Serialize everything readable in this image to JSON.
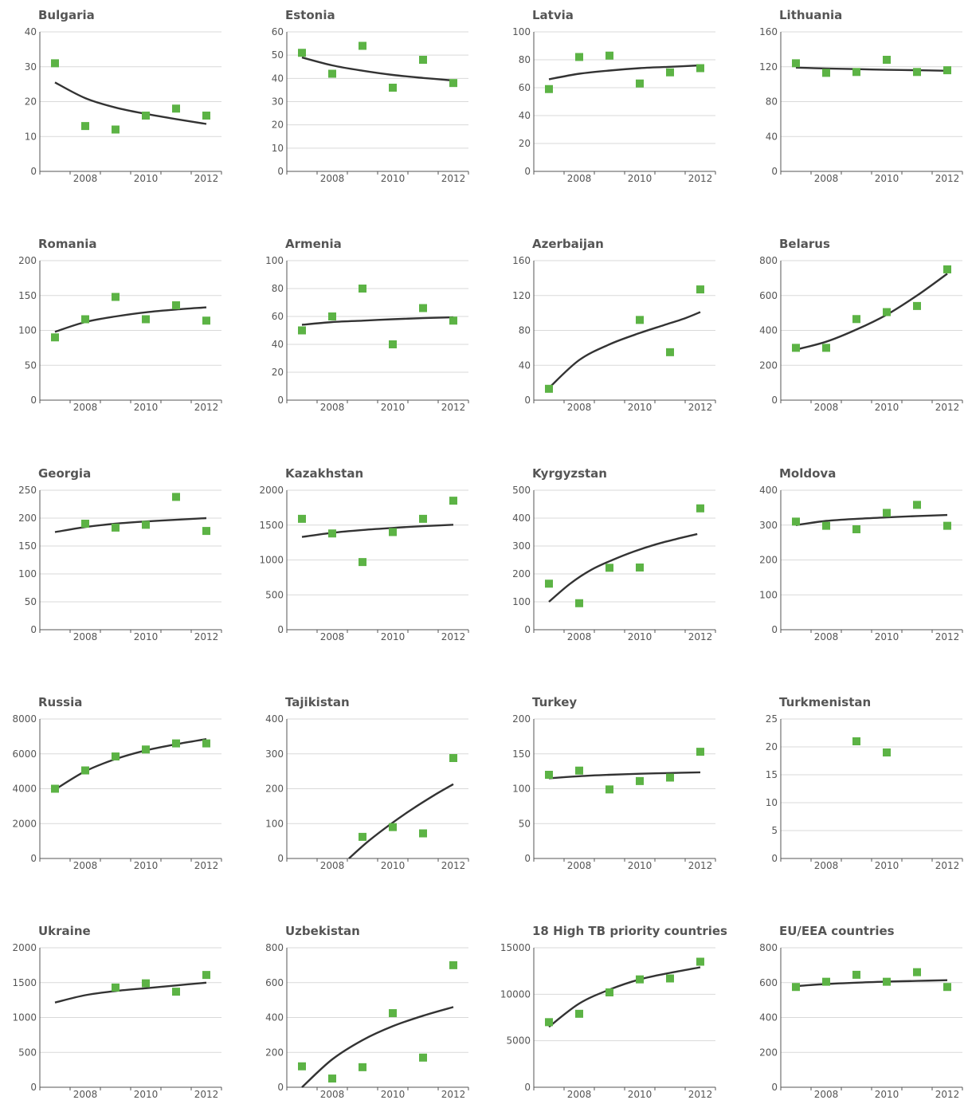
{
  "colors": {
    "point": "#5cb345",
    "trend": "#333333",
    "grid": "#d9d9d9",
    "text": "#555555"
  },
  "chart_data": [
    {
      "type": "scatter",
      "title": "Bulgaria",
      "x": [
        2007,
        2008,
        2009,
        2010,
        2011,
        2012
      ],
      "values": [
        31,
        13,
        12,
        16,
        18,
        16
      ],
      "trend": [
        25.5,
        21.0,
        18.3,
        16.5,
        15.0,
        13.6
      ],
      "yticks": [
        0,
        10,
        20,
        30,
        40
      ],
      "ylim": [
        0,
        40
      ],
      "xticks": [
        2008,
        2010,
        2012
      ]
    },
    {
      "type": "scatter",
      "title": "Estonia",
      "x": [
        2007,
        2008,
        2009,
        2010,
        2011,
        2012
      ],
      "values": [
        51,
        42,
        54,
        36,
        48,
        38
      ],
      "trend": [
        49,
        45.6,
        43.3,
        41.5,
        40.2,
        39.1
      ],
      "yticks": [
        0,
        10,
        20,
        30,
        40,
        50,
        60
      ],
      "ylim": [
        0,
        60
      ],
      "xticks": [
        2008,
        2010,
        2012
      ]
    },
    {
      "type": "scatter",
      "title": "Latvia",
      "x": [
        2007,
        2008,
        2009,
        2010,
        2011,
        2012
      ],
      "values": [
        59,
        82,
        83,
        63,
        71,
        74
      ],
      "trend": [
        66,
        70,
        72.3,
        74,
        75,
        76
      ],
      "yticks": [
        0,
        20,
        40,
        60,
        80,
        100
      ],
      "ylim": [
        0,
        100
      ],
      "xticks": [
        2008,
        2010,
        2012
      ]
    },
    {
      "type": "scatter",
      "title": "Lithuania",
      "x": [
        2007,
        2008,
        2009,
        2010,
        2011,
        2012
      ],
      "values": [
        124,
        113,
        114,
        128,
        114,
        116
      ],
      "trend": [
        119,
        118,
        117.3,
        116.5,
        116,
        115.4
      ],
      "yticks": [
        0,
        40,
        80,
        120,
        160
      ],
      "ylim": [
        0,
        160
      ],
      "xticks": [
        2008,
        2010,
        2012
      ]
    },
    {
      "type": "scatter",
      "title": "Romania",
      "x": [
        2007,
        2008,
        2009,
        2010,
        2011,
        2012
      ],
      "values": [
        90,
        116,
        148,
        116,
        136,
        114
      ],
      "trend": [
        98,
        112,
        120,
        126,
        130,
        133
      ],
      "yticks": [
        0,
        50,
        100,
        150,
        200
      ],
      "ylim": [
        0,
        200
      ],
      "xticks": [
        2008,
        2010,
        2012
      ]
    },
    {
      "type": "scatter",
      "title": "Armenia",
      "x": [
        2007,
        2008,
        2009,
        2010,
        2011,
        2012
      ],
      "values": [
        50,
        60,
        80,
        40,
        66,
        57
      ],
      "trend": [
        54,
        56,
        57,
        58,
        58.8,
        59.4
      ],
      "yticks": [
        0,
        20,
        40,
        60,
        80,
        100
      ],
      "ylim": [
        0,
        100
      ],
      "xticks": [
        2008,
        2010,
        2012
      ]
    },
    {
      "type": "scatter",
      "title": "Azerbaijan",
      "x": [
        2007,
        2010,
        2011,
        2012
      ],
      "values": [
        13,
        92,
        55,
        127
      ],
      "trend": [
        14,
        46,
        64,
        77,
        86,
        94,
        101
      ],
      "trend_x": [
        2007,
        2008,
        2009,
        2010,
        2010.8,
        2011.5,
        2012
      ],
      "yticks": [
        0,
        40,
        80,
        120,
        160
      ],
      "ylim": [
        0,
        160
      ],
      "xticks": [
        2008,
        2010,
        2012
      ]
    },
    {
      "type": "scatter",
      "title": "Belarus",
      "x": [
        2007,
        2008,
        2009,
        2010,
        2011,
        2012
      ],
      "values": [
        300,
        300,
        465,
        505,
        540,
        750
      ],
      "trend": [
        290,
        335,
        405,
        490,
        600,
        725
      ],
      "yticks": [
        0,
        200,
        400,
        600,
        800
      ],
      "ylim": [
        0,
        800
      ],
      "xticks": [
        2008,
        2010,
        2012
      ]
    },
    {
      "type": "scatter",
      "title": "Georgia",
      "x": [
        2007,
        2008,
        2009,
        2010,
        2011,
        2012
      ],
      "values": [
        null,
        190,
        183,
        188,
        238,
        177
      ],
      "trend": [
        175,
        184,
        190,
        194,
        197,
        200
      ],
      "yticks": [
        0,
        50,
        100,
        150,
        200,
        250
      ],
      "ylim": [
        0,
        250
      ],
      "xticks": [
        2008,
        2010,
        2012
      ]
    },
    {
      "type": "scatter",
      "title": "Kazakhstan",
      "x": [
        2007,
        2008,
        2009,
        2010,
        2011,
        2012
      ],
      "values": [
        1590,
        1380,
        970,
        1400,
        1590,
        1850
      ],
      "trend": [
        1330,
        1390,
        1430,
        1460,
        1485,
        1505
      ],
      "yticks": [
        0,
        500,
        1000,
        1500,
        2000
      ],
      "ylim": [
        0,
        2000
      ],
      "xticks": [
        2008,
        2010,
        2012
      ]
    },
    {
      "type": "scatter",
      "title": "Kyrgyzstan",
      "x": [
        2007,
        2008,
        2009,
        2010,
        2012
      ],
      "values": [
        165,
        95,
        222,
        223,
        435
      ],
      "trend": [
        100,
        165,
        215,
        250,
        280,
        305,
        325,
        343
      ],
      "trend_x": [
        2007,
        2007.7,
        2008.4,
        2009.1,
        2009.8,
        2010.5,
        2011.2,
        2011.9
      ],
      "yticks": [
        0,
        100,
        200,
        300,
        400,
        500
      ],
      "ylim": [
        0,
        500
      ],
      "xticks": [
        2008,
        2010,
        2012
      ]
    },
    {
      "type": "scatter",
      "title": "Moldova",
      "x": [
        2007,
        2008,
        2009,
        2010,
        2011,
        2012
      ],
      "values": [
        310,
        298,
        288,
        335,
        358,
        298
      ],
      "trend": [
        300,
        312,
        318,
        322,
        326,
        329
      ],
      "yticks": [
        0,
        100,
        200,
        300,
        400
      ],
      "ylim": [
        0,
        400
      ],
      "xticks": [
        2008,
        2010,
        2012
      ]
    },
    {
      "type": "scatter",
      "title": "Russia",
      "x": [
        2007,
        2008,
        2009,
        2010,
        2011,
        2012
      ],
      "values": [
        4000,
        5050,
        5850,
        6250,
        6600,
        6600
      ],
      "trend": [
        3950,
        5000,
        5700,
        6200,
        6550,
        6850
      ],
      "yticks": [
        0,
        2000,
        4000,
        6000,
        8000
      ],
      "ylim": [
        0,
        8000
      ],
      "xticks": [
        2008,
        2010,
        2012
      ]
    },
    {
      "type": "scatter",
      "title": "Tajikistan",
      "x": [
        2009,
        2010,
        2011,
        2012
      ],
      "values": [
        62,
        90,
        72,
        288
      ],
      "trend": [
        0,
        50,
        100,
        145,
        183,
        213
      ],
      "trend_x": [
        2008.55,
        2009.2,
        2009.95,
        2010.7,
        2011.4,
        2012
      ],
      "yticks": [
        0,
        100,
        200,
        300,
        400
      ],
      "ylim": [
        0,
        400
      ],
      "xticks": [
        2008,
        2010,
        2012
      ]
    },
    {
      "type": "scatter",
      "title": "Turkey",
      "x": [
        2007,
        2008,
        2009,
        2010,
        2011,
        2012
      ],
      "values": [
        120,
        126,
        99,
        111,
        116,
        153
      ],
      "trend": [
        115,
        118,
        120,
        121.5,
        122.5,
        123.5
      ],
      "yticks": [
        0,
        50,
        100,
        150,
        200
      ],
      "ylim": [
        0,
        200
      ],
      "xticks": [
        2008,
        2010,
        2012
      ]
    },
    {
      "type": "scatter",
      "title": "Turkmenistan",
      "x": [
        2009,
        2010
      ],
      "values": [
        21,
        19
      ],
      "trend": [],
      "yticks": [
        0,
        5,
        10,
        15,
        20,
        25
      ],
      "ylim": [
        0,
        25
      ],
      "xticks": [
        2008,
        2010,
        2012
      ]
    },
    {
      "type": "scatter",
      "title": "Ukraine",
      "x": [
        2009,
        2010,
        2011,
        2012
      ],
      "values": [
        1430,
        1490,
        1370,
        1610
      ],
      "trend": [
        1215,
        1320,
        1380,
        1420,
        1460,
        1500
      ],
      "trend_x": [
        2007,
        2008,
        2009,
        2010,
        2011,
        2012
      ],
      "yticks": [
        0,
        500,
        1000,
        1500,
        2000
      ],
      "ylim": [
        0,
        2000
      ],
      "xticks": [
        2008,
        2010,
        2012
      ]
    },
    {
      "type": "scatter",
      "title": "Uzbekistan",
      "x": [
        2007,
        2008,
        2009,
        2010,
        2011,
        2012
      ],
      "values": [
        120,
        50,
        115,
        425,
        170,
        700
      ],
      "trend": [
        0,
        160,
        270,
        350,
        410,
        460
      ],
      "yticks": [
        0,
        200,
        400,
        600,
        800
      ],
      "ylim": [
        0,
        800
      ],
      "xticks": [
        2008,
        2010,
        2012
      ]
    },
    {
      "type": "scatter",
      "title": "18 High TB priority countries",
      "x": [
        2007,
        2008,
        2009,
        2010,
        2011,
        2012
      ],
      "values": [
        7000,
        7900,
        10200,
        11600,
        11700,
        13500
      ],
      "trend": [
        6500,
        9000,
        10500,
        11600,
        12300,
        12900
      ],
      "yticks": [
        0,
        5000,
        10000,
        15000
      ],
      "ylim": [
        0,
        15000
      ],
      "xticks": [
        2008,
        2010,
        2012
      ]
    },
    {
      "type": "scatter",
      "title": "EU/EEA countries",
      "x": [
        2007,
        2008,
        2009,
        2010,
        2011,
        2012
      ],
      "values": [
        575,
        605,
        645,
        605,
        660,
        575
      ],
      "trend": [
        580,
        592,
        600,
        606,
        610,
        614
      ],
      "yticks": [
        0,
        200,
        400,
        600,
        800
      ],
      "ylim": [
        0,
        800
      ],
      "xticks": [
        2008,
        2010,
        2012
      ]
    }
  ]
}
